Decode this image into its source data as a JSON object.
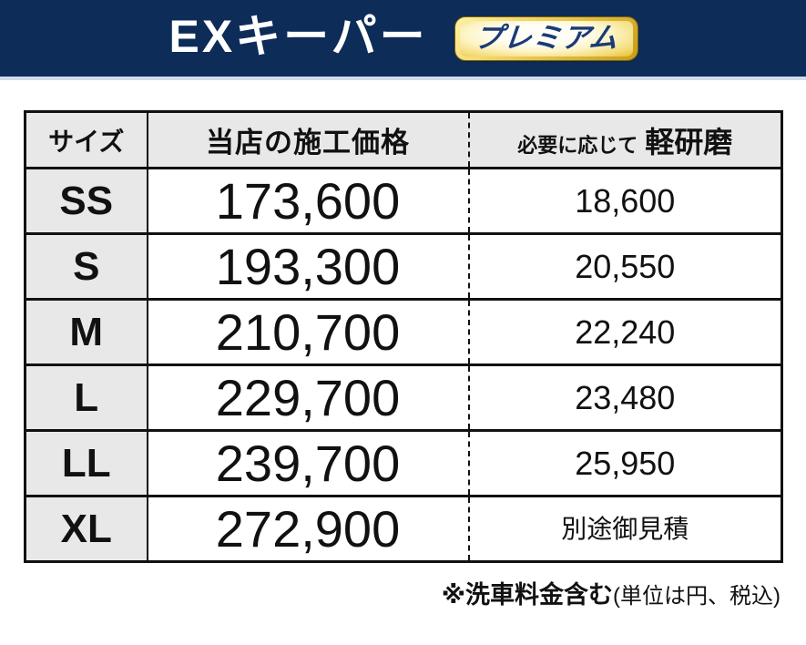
{
  "colors": {
    "banner_navy": "#0d2c58",
    "banner_underline": "#cfdcea",
    "badge_gold": "#e6bd33",
    "badge_text_navy": "#1b3a78",
    "header_cell_gray": "#e8e8e8",
    "table_border": "#111111"
  },
  "header": {
    "title": "EXキーパー",
    "badge_label": "プレミアム"
  },
  "table": {
    "col_size_header": "サイズ",
    "col_price_header": "当店の施工価格",
    "col_polish_prefix": "必要に応じて",
    "col_polish_header": "軽研磨",
    "rows": [
      {
        "size": "SS",
        "price": "173,600",
        "polish": "18,600"
      },
      {
        "size": "S",
        "price": "193,300",
        "polish": "20,550"
      },
      {
        "size": "M",
        "price": "210,700",
        "polish": "22,240"
      },
      {
        "size": "L",
        "price": "229,700",
        "polish": "23,480"
      },
      {
        "size": "LL",
        "price": "239,700",
        "polish": "25,950"
      },
      {
        "size": "XL",
        "price": "272,900",
        "polish": "別途御見積"
      }
    ]
  },
  "footer": {
    "note_bold": "※洗車料金含む",
    "note_paren": "(単位は円、税込)"
  }
}
